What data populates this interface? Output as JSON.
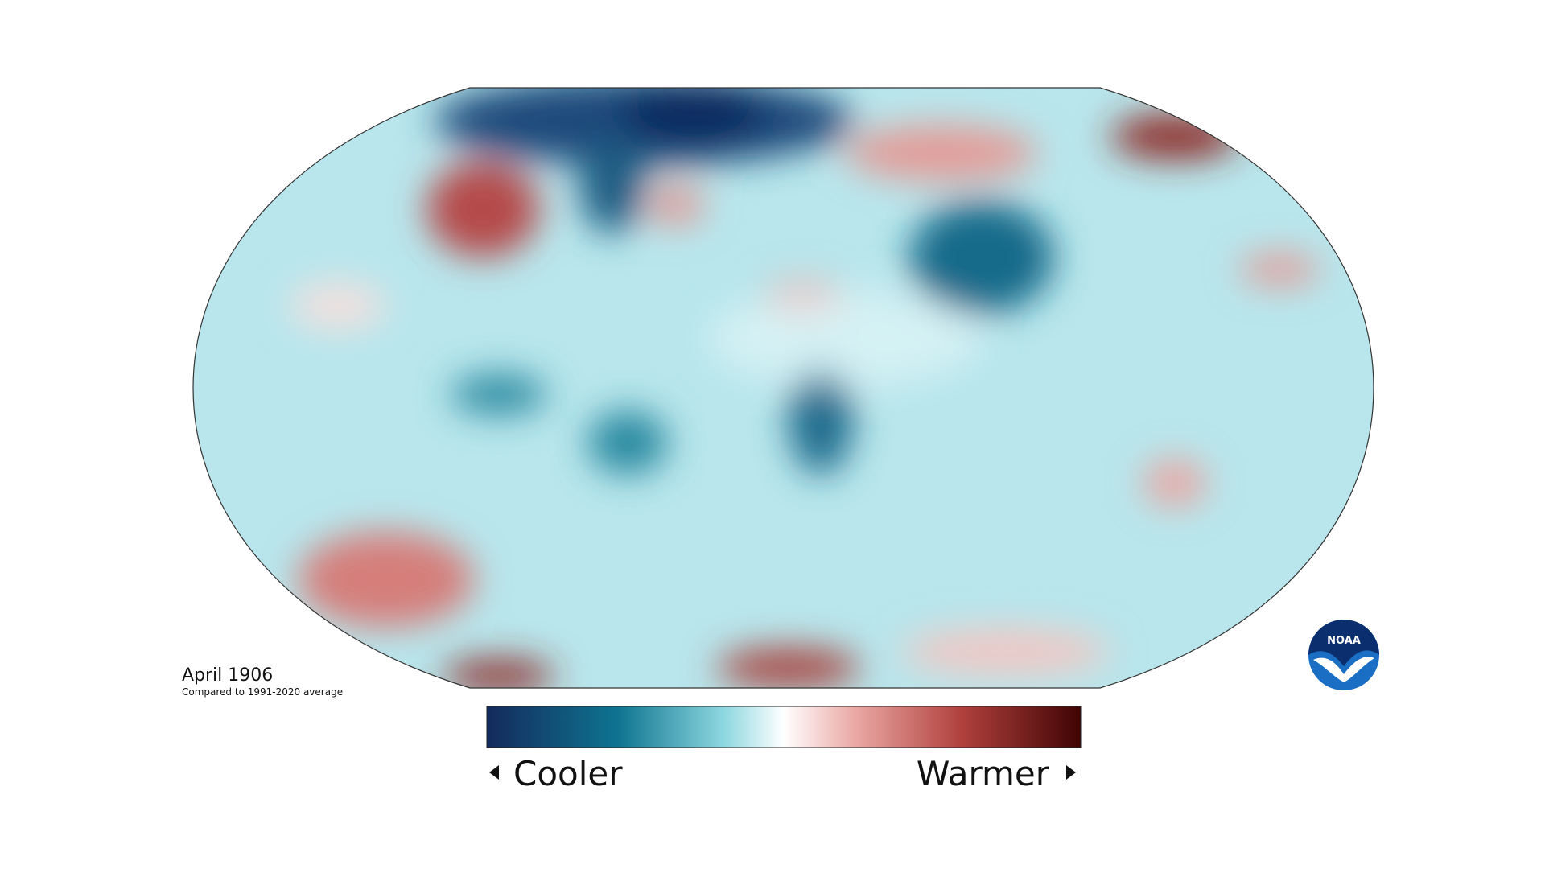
{
  "map": {
    "title": "April 1906",
    "subtitle": "Compared to 1991-2020 average",
    "legend": {
      "low_label": "Cooler",
      "high_label": "Warmer"
    },
    "logo": "NOAA"
  }
}
